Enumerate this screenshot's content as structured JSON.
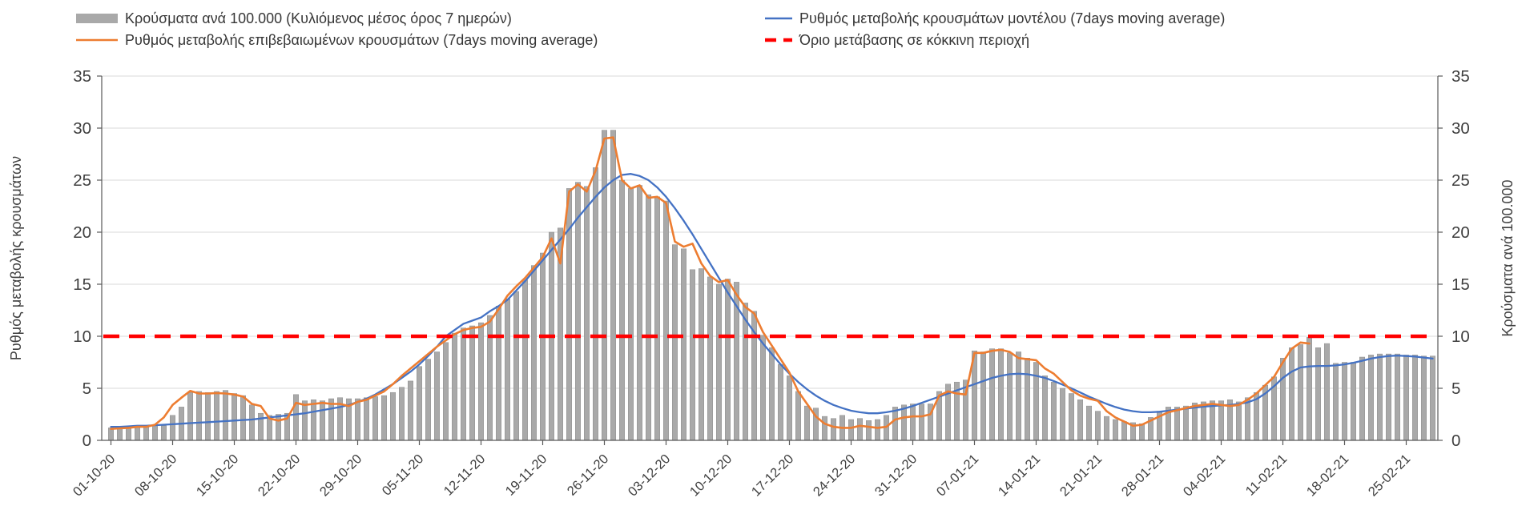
{
  "page": {
    "background": "#ffffff"
  },
  "chart_data": {
    "type": "combo-bar-line",
    "title": "",
    "grid": "horizontal-on",
    "x_axis": {
      "n_points": 151,
      "points_per_tick": 7,
      "start_label": "01-10-20",
      "tick_labels": [
        "01-10-20",
        "08-10-20",
        "15-10-20",
        "22-10-20",
        "29-10-20",
        "05-11-20",
        "12-11-20",
        "19-11-20",
        "26-11-20",
        "03-12-20",
        "10-12-20",
        "17-12-20",
        "24-12-20",
        "31-12-20",
        "07-01-21",
        "14-01-21",
        "21-01-21",
        "28-01-21",
        "04-02-21",
        "11-02-21",
        "18-02-21",
        "25-02-21"
      ]
    },
    "y_axis": {
      "left_title": "Ρυθμός μεταβολής κρουσμάτων",
      "right_title": "Κρούσματα ανά 100.000",
      "min": 0,
      "max": 35,
      "tick_step": 5,
      "tick_labels": [
        "0",
        "5",
        "10",
        "15",
        "20",
        "25",
        "30",
        "35"
      ]
    },
    "colors": {
      "bars": "#a9a9a9",
      "bar_edge": "#8f8f8f",
      "confirmed_line": "#ed7d31",
      "model_line": "#4472c4",
      "threshold_line": "#ff0000",
      "gridline": "#d9d9d9",
      "axis": "#595959",
      "text": "#3f3f3f"
    },
    "series": [
      {
        "name": "Κρούσματα ανά 100.000 (Κυλιόμενος μέσος όρος 7 ημερών)",
        "type": "bar",
        "color": "#a9a9a9",
        "values": [
          1.2,
          1.2,
          1.3,
          1.4,
          1.4,
          1.5,
          1.4,
          2.4,
          3.2,
          4.6,
          4.7,
          4.6,
          4.7,
          4.8,
          4.5,
          4.3,
          3.4,
          2.6,
          2.4,
          2.5,
          2.6,
          4.4,
          3.8,
          3.9,
          3.8,
          4.0,
          4.1,
          4.0,
          4.0,
          4.1,
          4.2,
          4.3,
          4.6,
          5.1,
          5.7,
          7.1,
          7.8,
          8.5,
          9.4,
          10.3,
          10.8,
          11.0,
          11.3,
          12.0,
          12.9,
          13.6,
          14.3,
          15.4,
          16.8,
          18.0,
          20.0,
          20.4,
          24.2,
          24.8,
          24.4,
          26.2,
          29.8,
          29.8,
          25.0,
          24.2,
          24.5,
          23.6,
          23.4,
          23.0,
          18.8,
          18.4,
          16.4,
          16.5,
          15.7,
          15.0,
          15.5,
          15.2,
          13.2,
          12.4,
          10.1,
          8.9,
          7.3,
          6.2,
          4.7,
          3.3,
          3.1,
          2.3,
          2.1,
          2.4,
          2.0,
          2.1,
          1.9,
          2.0,
          2.4,
          3.2,
          3.4,
          3.5,
          3.5,
          3.5,
          4.7,
          5.4,
          5.6,
          5.8,
          8.6,
          8.5,
          8.8,
          8.8,
          8.4,
          8.5,
          7.9,
          7.5,
          6.2,
          5.6,
          5.0,
          4.5,
          3.9,
          3.3,
          2.8,
          2.3,
          2.0,
          1.8,
          1.7,
          1.6,
          2.2,
          2.8,
          3.2,
          3.2,
          3.3,
          3.6,
          3.7,
          3.8,
          3.8,
          3.9,
          3.7,
          4.1,
          4.6,
          5.3,
          6.1,
          7.9,
          8.9,
          9.2,
          9.9,
          8.9,
          9.3,
          7.4,
          7.5,
          7.5,
          8.0,
          8.2,
          8.3,
          8.3,
          8.3,
          8.2,
          8.2,
          8.1,
          8.1
        ]
      },
      {
        "name": "Ρυθμός μεταβολής επιβεβαιωμένων κρουσμάτων (7days moving average)",
        "type": "line",
        "color": "#ed7d31",
        "values": [
          1.1,
          1.15,
          1.2,
          1.3,
          1.3,
          1.5,
          2.2,
          3.4,
          4.1,
          4.75,
          4.5,
          4.5,
          4.55,
          4.5,
          4.4,
          4.2,
          3.5,
          3.3,
          2.1,
          1.9,
          2.1,
          3.6,
          3.4,
          3.5,
          3.6,
          3.5,
          3.5,
          3.3,
          3.7,
          3.9,
          4.3,
          4.7,
          5.4,
          6.2,
          6.9,
          7.6,
          8.3,
          9.0,
          9.6,
          10.2,
          10.6,
          10.8,
          10.9,
          11.4,
          12.6,
          13.9,
          14.8,
          15.6,
          16.6,
          17.6,
          19.4,
          17.0,
          23.9,
          24.6,
          23.9,
          25.9,
          29.0,
          29.1,
          25.0,
          24.2,
          24.5,
          23.3,
          23.4,
          22.8,
          19.1,
          18.6,
          18.9,
          17.0,
          15.8,
          15.2,
          15.4,
          14.0,
          12.8,
          12.2,
          10.4,
          9.1,
          7.8,
          6.5,
          4.7,
          3.5,
          2.3,
          1.6,
          1.3,
          1.2,
          1.2,
          1.4,
          1.3,
          1.2,
          1.3,
          2.0,
          2.2,
          2.3,
          2.3,
          2.5,
          4.3,
          4.7,
          4.5,
          4.4,
          8.4,
          8.4,
          8.6,
          8.7,
          8.5,
          7.9,
          7.8,
          7.7,
          6.9,
          6.4,
          5.6,
          4.8,
          4.3,
          4.0,
          3.8,
          2.8,
          2.2,
          1.8,
          1.4,
          1.5,
          1.9,
          2.3,
          2.7,
          2.9,
          3.1,
          3.3,
          3.4,
          3.5,
          3.4,
          3.3,
          3.4,
          3.9,
          4.5,
          5.3,
          6.1,
          7.5,
          8.8,
          9.4,
          9.3,
          null,
          null,
          null,
          null,
          null,
          null,
          null,
          null,
          null,
          null,
          null,
          null,
          null,
          null
        ]
      },
      {
        "name": "Ρυθμός μεταβολής κρουσμάτων μοντέλου (7days moving average)",
        "type": "line",
        "color": "#4472c4",
        "values": [
          1.3,
          1.3,
          1.35,
          1.4,
          1.4,
          1.45,
          1.5,
          1.55,
          1.6,
          1.65,
          1.7,
          1.75,
          1.8,
          1.85,
          1.9,
          1.95,
          2.0,
          2.1,
          2.2,
          2.3,
          2.4,
          2.5,
          2.6,
          2.75,
          2.9,
          3.05,
          3.2,
          3.4,
          3.7,
          4.0,
          4.4,
          4.9,
          5.4,
          6.0,
          6.6,
          7.3,
          8.1,
          9.0,
          10.0,
          10.6,
          11.2,
          11.5,
          11.8,
          12.4,
          12.9,
          13.5,
          14.4,
          15.3,
          16.3,
          17.3,
          18.3,
          19.3,
          20.3,
          21.4,
          22.4,
          23.4,
          24.3,
          25.0,
          25.5,
          25.6,
          25.4,
          25.0,
          24.3,
          23.4,
          22.3,
          21.1,
          19.8,
          18.4,
          17.0,
          15.6,
          14.2,
          12.9,
          11.6,
          10.4,
          9.3,
          8.3,
          7.3,
          6.4,
          5.6,
          4.9,
          4.3,
          3.8,
          3.4,
          3.1,
          2.85,
          2.7,
          2.6,
          2.6,
          2.7,
          2.85,
          3.05,
          3.3,
          3.6,
          3.9,
          4.2,
          4.5,
          4.8,
          5.1,
          5.4,
          5.7,
          6.0,
          6.2,
          6.35,
          6.4,
          6.35,
          6.2,
          6.0,
          5.7,
          5.35,
          5.0,
          4.6,
          4.2,
          3.85,
          3.5,
          3.2,
          2.95,
          2.8,
          2.7,
          2.7,
          2.75,
          2.85,
          2.95,
          3.05,
          3.15,
          3.25,
          3.3,
          3.35,
          3.4,
          3.5,
          3.65,
          3.95,
          4.5,
          5.2,
          6.0,
          6.6,
          7.0,
          7.1,
          7.15,
          7.15,
          7.2,
          7.3,
          7.45,
          7.65,
          7.85,
          8.0,
          8.1,
          8.15,
          8.1,
          8.05,
          7.95,
          7.85
        ]
      },
      {
        "name": "Όριο μετάβασης σε κόκκινη περιοχή",
        "type": "threshold-line",
        "color": "#ff0000",
        "dashed": true,
        "value": 10
      }
    ],
    "legend": {
      "position": "top",
      "items": [
        {
          "label": "Κρούσματα ανά 100.000 (Κυλιόμενος μέσος όρος 7 ημερών)",
          "marker": "bar-swatch",
          "color": "#a9a9a9"
        },
        {
          "label": "Ρυθμός μεταβολής κρουσμάτων μοντέλου (7days moving average)",
          "marker": "line",
          "color": "#4472c4"
        },
        {
          "label": "Ρυθμός μεταβολής επιβεβαιωμένων κρουσμάτων (7days moving average)",
          "marker": "line",
          "color": "#ed7d31"
        },
        {
          "label": "Όριο μετάβασης σε κόκκινη περιοχή",
          "marker": "dashed-line",
          "color": "#ff0000"
        }
      ]
    }
  }
}
